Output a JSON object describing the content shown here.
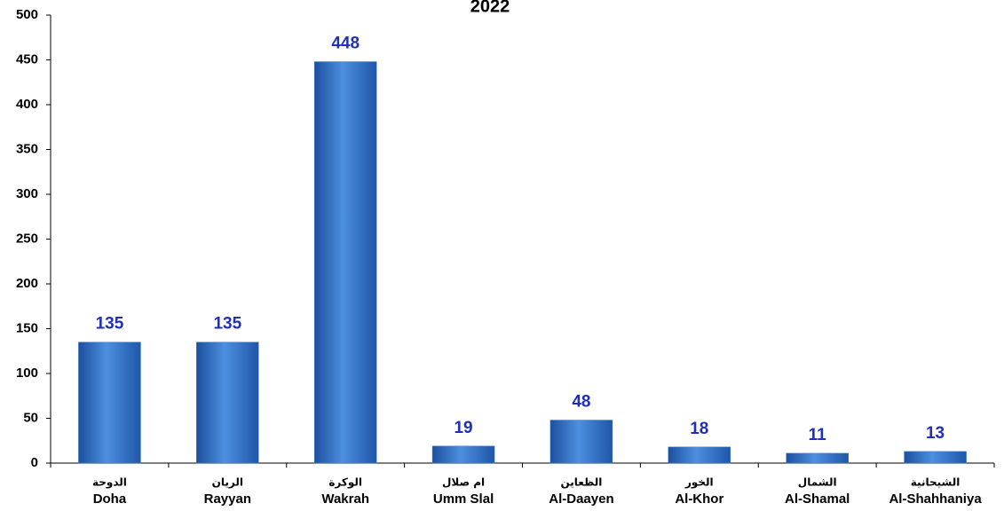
{
  "chart_data": {
    "type": "bar",
    "title": "2022",
    "categories": [
      "Doha",
      "Rayyan",
      "Wakrah",
      "Umm Slal",
      "Al-Daayen",
      "Al-Khor",
      "Al-Shamal",
      "Al-Shahhaniya"
    ],
    "categories_ar": [
      "الدوحة",
      "الريان",
      "الوكرة",
      "ام صلال",
      "الظعاين",
      "الخور",
      "الشمال",
      "الشيحانية"
    ],
    "values": [
      135,
      135,
      448,
      19,
      48,
      18,
      11,
      13
    ],
    "color": "#3f7fd6",
    "ylim": [
      0,
      500
    ],
    "yticks": [
      0,
      50,
      100,
      150,
      200,
      250,
      300,
      350,
      400,
      450,
      500
    ],
    "grid": false
  }
}
